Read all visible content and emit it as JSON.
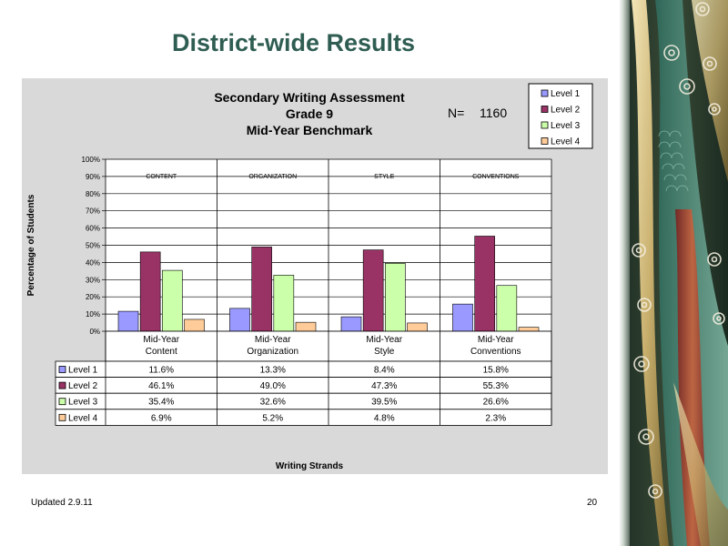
{
  "slide": {
    "title": "District-wide Results",
    "footer_left": "Updated  2.9.11",
    "page_number": "20"
  },
  "chart_data": {
    "type": "bar",
    "title_lines": [
      "Secondary Writing Assessment",
      "Grade 9",
      "Mid-Year Benchmark"
    ],
    "n_label": "N=",
    "n_value": "1160",
    "ylabel": "Percentage of Students",
    "xlabel": "Writing Strands",
    "ylim": [
      0,
      100
    ],
    "yticks": [
      "0%",
      "10%",
      "20%",
      "30%",
      "40%",
      "50%",
      "60%",
      "70%",
      "80%",
      "90%",
      "100%"
    ],
    "grid": true,
    "legend_position": "top-right",
    "group_headers": [
      "CONTENT",
      "ORGANIZATION",
      "STYLE",
      "CONVENTIONS"
    ],
    "categories": [
      [
        "Mid-Year",
        "Content"
      ],
      [
        "Mid-Year",
        "Organization"
      ],
      [
        "Mid-Year",
        "Style"
      ],
      [
        "Mid-Year",
        "Conventions"
      ]
    ],
    "series": [
      {
        "name": "Level 1",
        "color": "#9999ff",
        "values": [
          11.6,
          13.3,
          8.4,
          15.8
        ],
        "labels": [
          "11.6%",
          "13.3%",
          "8.4%",
          "15.8%"
        ]
      },
      {
        "name": "Level 2",
        "color": "#993366",
        "values": [
          46.1,
          49.0,
          47.3,
          55.3
        ],
        "labels": [
          "46.1%",
          "49.0%",
          "47.3%",
          "55.3%"
        ]
      },
      {
        "name": "Level 3",
        "color": "#ccffaa",
        "values": [
          35.4,
          32.6,
          39.5,
          26.6
        ],
        "labels": [
          "35.4%",
          "32.6%",
          "39.5%",
          "26.6%"
        ]
      },
      {
        "name": "Level 4",
        "color": "#ffcc99",
        "values": [
          6.9,
          5.2,
          4.8,
          2.3
        ],
        "labels": [
          "6.9%",
          "5.2%",
          "4.8%",
          "2.3%"
        ]
      }
    ],
    "plot_background": "#ffffff",
    "panel_background": "#d9d9d9"
  }
}
